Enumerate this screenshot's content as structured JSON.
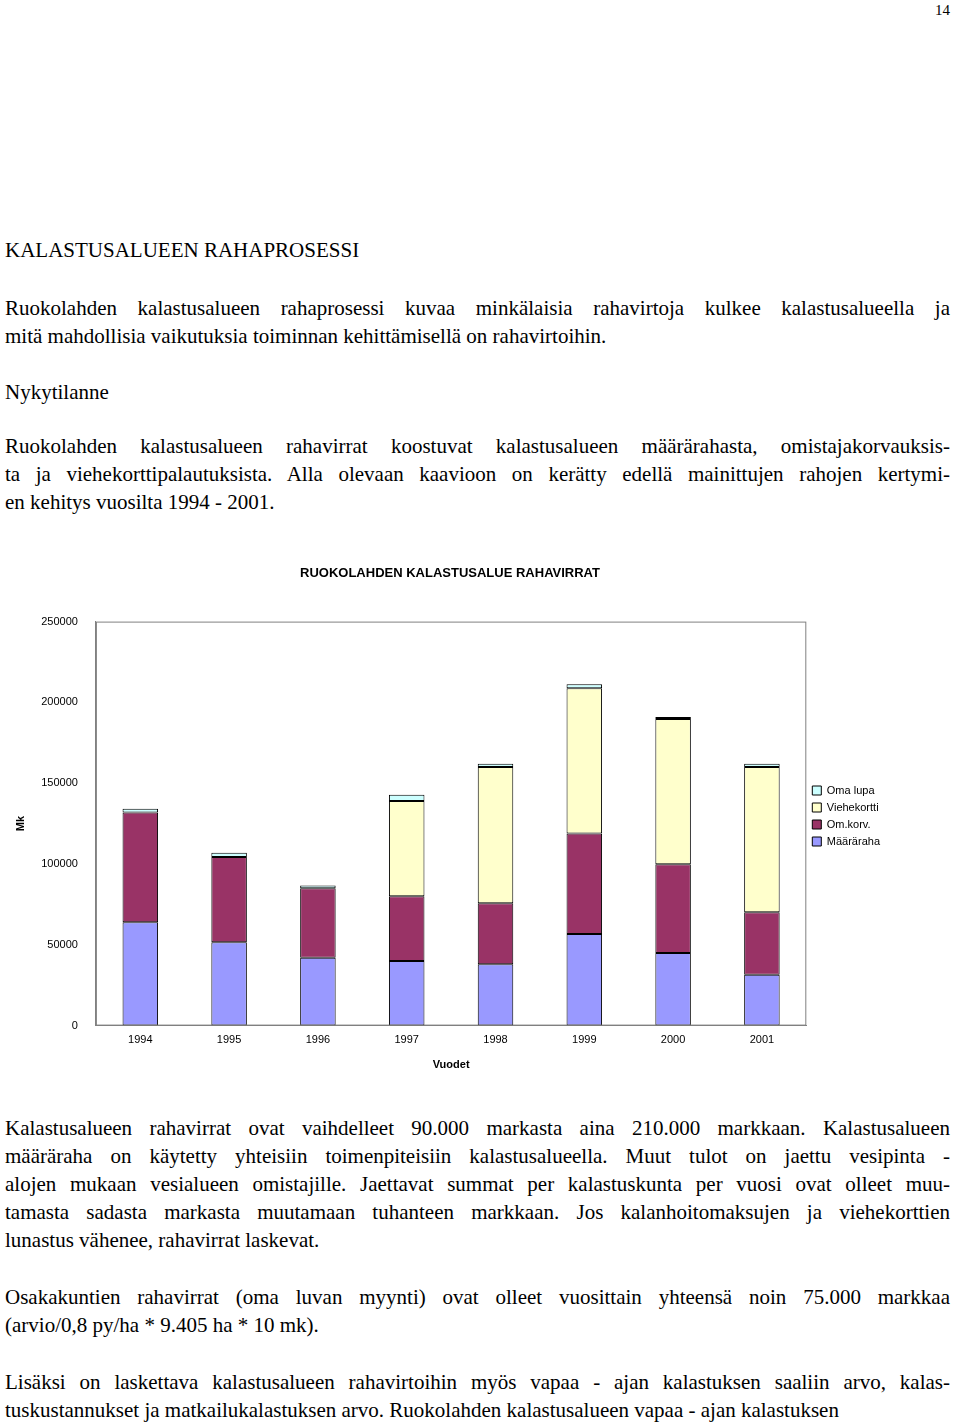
{
  "page_number": "14",
  "heading": "KALASTUSALUEEN RAHAPROSESSI",
  "intro": [
    "Ruokolahden kalastusalueen rahaprosessi kuvaa minkälaisia rahavirtoja kulkee kalastusalueella ja",
    "mitä mahdollisia vaikutuksia toiminnan kehittämisellä on rahavirtoihin."
  ],
  "subheading": "Nykytilanne",
  "before_chart": [
    "Ruokolahden kalastusalueen rahavirrat koostuvat kalastusalueen määrärahasta, omistajakorvauksis-",
    "ta ja viehekorttipalautuksista. Alla olevaan kaavioon on kerätty edellä mainittujen rahojen kertymi-",
    "en kehitys vuosilta 1994 - 2001."
  ],
  "chart_data": {
    "type": "bar",
    "title": "RUOKOLAHDEN KALASTUSALUE RAHAVIRRAT",
    "x_label": "Vuodet",
    "y_label": "Mk",
    "categories": [
      "1994",
      "1995",
      "1996",
      "1997",
      "1998",
      "1999",
      "2000",
      "2001"
    ],
    "series": [
      {
        "name": "Määräraha",
        "color": "#9999ff",
        "values": [
          64000,
          51600,
          42000,
          40000,
          38000,
          56700,
          45000,
          31400
        ]
      },
      {
        "name": "Om.korv.",
        "color": "#993366",
        "values": [
          67800,
          52800,
          43000,
          40000,
          37700,
          62100,
          54800,
          38800
        ]
      },
      {
        "name": "Viehekortti",
        "color": "#ffffcc",
        "values": [
          0,
          0,
          0,
          59000,
          84400,
          89900,
          89900,
          89900
        ]
      },
      {
        "name": "Oma lupa",
        "color": "#ccffff",
        "values": [
          2400,
          2500,
          1700,
          3800,
          1900,
          2500,
          1200,
          1900
        ]
      }
    ],
    "ylim": [
      0,
      250000
    ],
    "yticks": [
      0,
      50000,
      100000,
      150000,
      200000,
      250000
    ],
    "stacked": true,
    "grid": false,
    "legend": "right"
  },
  "after_chart": [
    [
      "Kalastusalueen rahavirrat ovat vaihdelleet 90.000 markasta aina 210.000 markkaan. Kalastusalueen",
      "määräraha on käytetty yhteisiin toimenpiteisiin kalastusalueella. Muut tulot on jaettu vesipinta -",
      "alojen mukaan vesialueen omistajille. Jaettavat summat per kalastuskunta per vuosi ovat olleet muu-",
      "tamasta sadasta markasta muutamaan tuhanteen markkaan. Jos kalanhoitomaksujen ja viehekorttien",
      "lunastus vähenee,  rahavirrat laskevat."
    ],
    [
      "Osakakuntien rahavirrat (oma luvan myynti)  ovat olleet vuosittain yhteensä noin 75.000 markkaa",
      "(arvio/0,8 py/ha * 9.405 ha * 10 mk)."
    ],
    [
      "Lisäksi on laskettava kalastusalueen rahavirtoihin myös vapaa - ajan kalastuksen saaliin arvo, kalas-",
      "tuskustannukset ja matkailukalastuksen arvo. Ruokolahden kalastusalueen vapaa - ajan kalastuksen"
    ]
  ]
}
